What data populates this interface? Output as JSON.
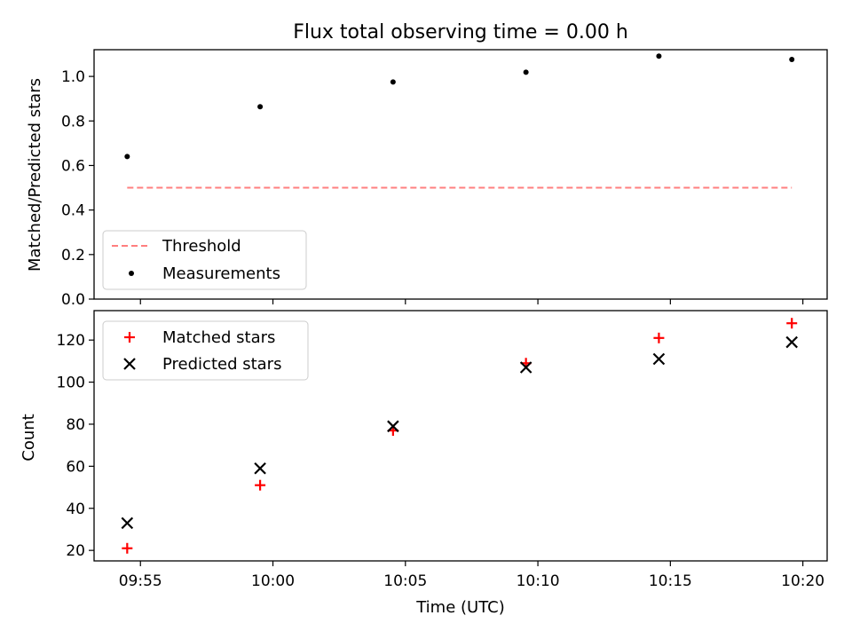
{
  "chart_data": {
    "title": "Flux total observing time = 0.00 h",
    "xlabel": "Time (UTC)",
    "x_unit": "time of day (UTC)",
    "x_ticks": [
      "09:55",
      "10:00",
      "10:05",
      "10:10",
      "10:15",
      "10:20"
    ],
    "x_range": [
      "09:53:15",
      "10:20:55"
    ],
    "top": {
      "type": "scatter",
      "ylabel": "Matched/Predicted stars",
      "ylim": [
        0.0,
        1.12
      ],
      "y_ticks": [
        "0.0",
        "0.2",
        "0.4",
        "0.6",
        "0.8",
        "1.0"
      ],
      "legend_position": "lower-left",
      "series": [
        {
          "name": "Threshold",
          "kind": "dashed-line",
          "color": "#ff7f7f",
          "x": [
            "09:54:30",
            "10:19:35"
          ],
          "y": [
            0.5,
            0.5
          ]
        },
        {
          "name": "Measurements",
          "kind": "dot",
          "color": "#000000",
          "x": [
            "09:54:30",
            "09:59:31",
            "10:04:32",
            "10:09:33",
            "10:14:34",
            "10:19:35"
          ],
          "y": [
            0.64,
            0.864,
            0.975,
            1.019,
            1.091,
            1.076
          ]
        }
      ]
    },
    "bottom": {
      "type": "scatter",
      "ylabel": "Count",
      "ylim": [
        15,
        134
      ],
      "y_ticks": [
        "20",
        "40",
        "60",
        "80",
        "100",
        "120"
      ],
      "legend_position": "upper-left",
      "series": [
        {
          "name": "Matched stars",
          "marker": "+",
          "color": "#ff0000",
          "x": [
            "09:54:30",
            "09:59:31",
            "10:04:32",
            "10:09:33",
            "10:14:34",
            "10:19:35"
          ],
          "y": [
            21,
            51,
            77,
            109,
            121,
            128
          ]
        },
        {
          "name": "Predicted stars",
          "marker": "x",
          "color": "#000000",
          "x": [
            "09:54:30",
            "09:59:31",
            "10:04:32",
            "10:09:33",
            "10:14:34",
            "10:19:35"
          ],
          "y": [
            33,
            59,
            79,
            107,
            111,
            119
          ]
        }
      ]
    }
  }
}
